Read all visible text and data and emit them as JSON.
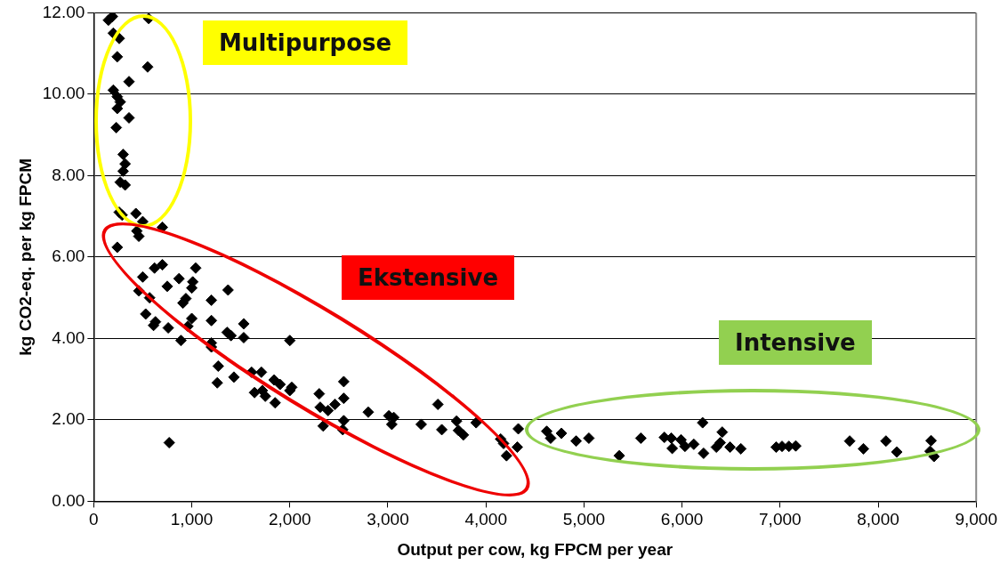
{
  "chart_data": {
    "type": "scatter",
    "xlabel": "Output per cow, kg FPCM per year",
    "ylabel": "kg CO2-eq. per kg FPCM",
    "annotations": [
      "Multipurpose",
      "Ekstensive",
      "Intensive"
    ],
    "marker": "diamond",
    "grid": "y",
    "color": "#000000",
    "xlim": [
      0,
      9000
    ],
    "ylim": [
      0,
      12
    ],
    "xticks": [
      {
        "value": 0,
        "label": "0"
      },
      {
        "value": 1000,
        "label": "1,000"
      },
      {
        "value": 2000,
        "label": "2,000"
      },
      {
        "value": 3000,
        "label": "3,000"
      },
      {
        "value": 4000,
        "label": "4,000"
      },
      {
        "value": 5000,
        "label": "5,000"
      },
      {
        "value": 6000,
        "label": "6,000"
      },
      {
        "value": 7000,
        "label": "7,000"
      },
      {
        "value": 8000,
        "label": "8,000"
      },
      {
        "value": 9000,
        "label": "9,000"
      }
    ],
    "yticks": [
      {
        "value": 0,
        "label": "0.00"
      },
      {
        "value": 2,
        "label": "2.00"
      },
      {
        "value": 4,
        "label": "4.00"
      },
      {
        "value": 6,
        "label": "6.00"
      },
      {
        "value": 8,
        "label": "8.00"
      },
      {
        "value": 10,
        "label": "10.00"
      },
      {
        "value": 12,
        "label": "12.00"
      }
    ],
    "x": [
      150,
      190,
      560,
      200,
      260,
      240,
      550,
      360,
      200,
      240,
      270,
      240,
      360,
      230,
      300,
      320,
      300,
      270,
      320,
      260,
      430,
      290,
      500,
      700,
      440,
      460,
      240,
      620,
      700,
      1040,
      500,
      870,
      750,
      1010,
      1000,
      460,
      570,
      940,
      910,
      1370,
      1200,
      530,
      630,
      610,
      760,
      1000,
      960,
      1200,
      890,
      1200,
      1200,
      1360,
      1400,
      1530,
      1530,
      2000,
      1270,
      1260,
      1430,
      1610,
      1710,
      1840,
      1900,
      1640,
      1720,
      1750,
      1850,
      2020,
      2000,
      2300,
      2550,
      2550,
      2310,
      2390,
      2460,
      2550,
      2340,
      2540,
      2800,
      770,
      3010,
      3060,
      3040,
      3340,
      3510,
      3550,
      3700,
      3720,
      3770,
      3900,
      4150,
      4180,
      4210,
      4330,
      4320,
      4620,
      4660,
      4770,
      4920,
      5050,
      5360,
      5580,
      5820,
      5890,
      5900,
      5990,
      6030,
      6120,
      6210,
      6220,
      6410,
      6390,
      6350,
      6490,
      6600,
      6960,
      7020,
      7090,
      7160,
      7710,
      7850,
      8080,
      8190,
      8540,
      8530,
      8570
    ],
    "values": [
      11.82,
      11.91,
      11.86,
      11.5,
      11.37,
      10.92,
      10.67,
      10.31,
      10.1,
      9.94,
      9.81,
      9.65,
      9.42,
      9.18,
      8.52,
      8.29,
      8.11,
      7.84,
      7.77,
      7.1,
      7.07,
      7.03,
      6.87,
      6.73,
      6.64,
      6.51,
      6.24,
      5.73,
      5.81,
      5.73,
      5.51,
      5.47,
      5.28,
      5.39,
      5.24,
      5.17,
      5.0,
      4.98,
      4.87,
      5.19,
      4.94,
      4.6,
      4.41,
      4.32,
      4.26,
      4.49,
      4.3,
      4.44,
      3.95,
      3.89,
      3.79,
      4.15,
      4.07,
      4.36,
      4.02,
      3.95,
      3.32,
      2.91,
      3.05,
      3.17,
      3.17,
      2.98,
      2.87,
      2.67,
      2.72,
      2.58,
      2.42,
      2.8,
      2.72,
      2.64,
      2.94,
      2.53,
      2.31,
      2.23,
      2.38,
      1.98,
      1.85,
      1.76,
      2.19,
      1.44,
      2.1,
      2.06,
      1.89,
      1.89,
      2.38,
      1.76,
      1.97,
      1.74,
      1.63,
      1.93,
      1.53,
      1.42,
      1.12,
      1.78,
      1.33,
      1.72,
      1.55,
      1.67,
      1.48,
      1.55,
      1.12,
      1.55,
      1.57,
      1.55,
      1.3,
      1.51,
      1.35,
      1.4,
      1.93,
      1.18,
      1.7,
      1.44,
      1.33,
      1.33,
      1.29,
      1.33,
      1.35,
      1.35,
      1.36,
      1.48,
      1.29,
      1.48,
      1.21,
      1.49,
      1.23,
      1.1
    ]
  }
}
